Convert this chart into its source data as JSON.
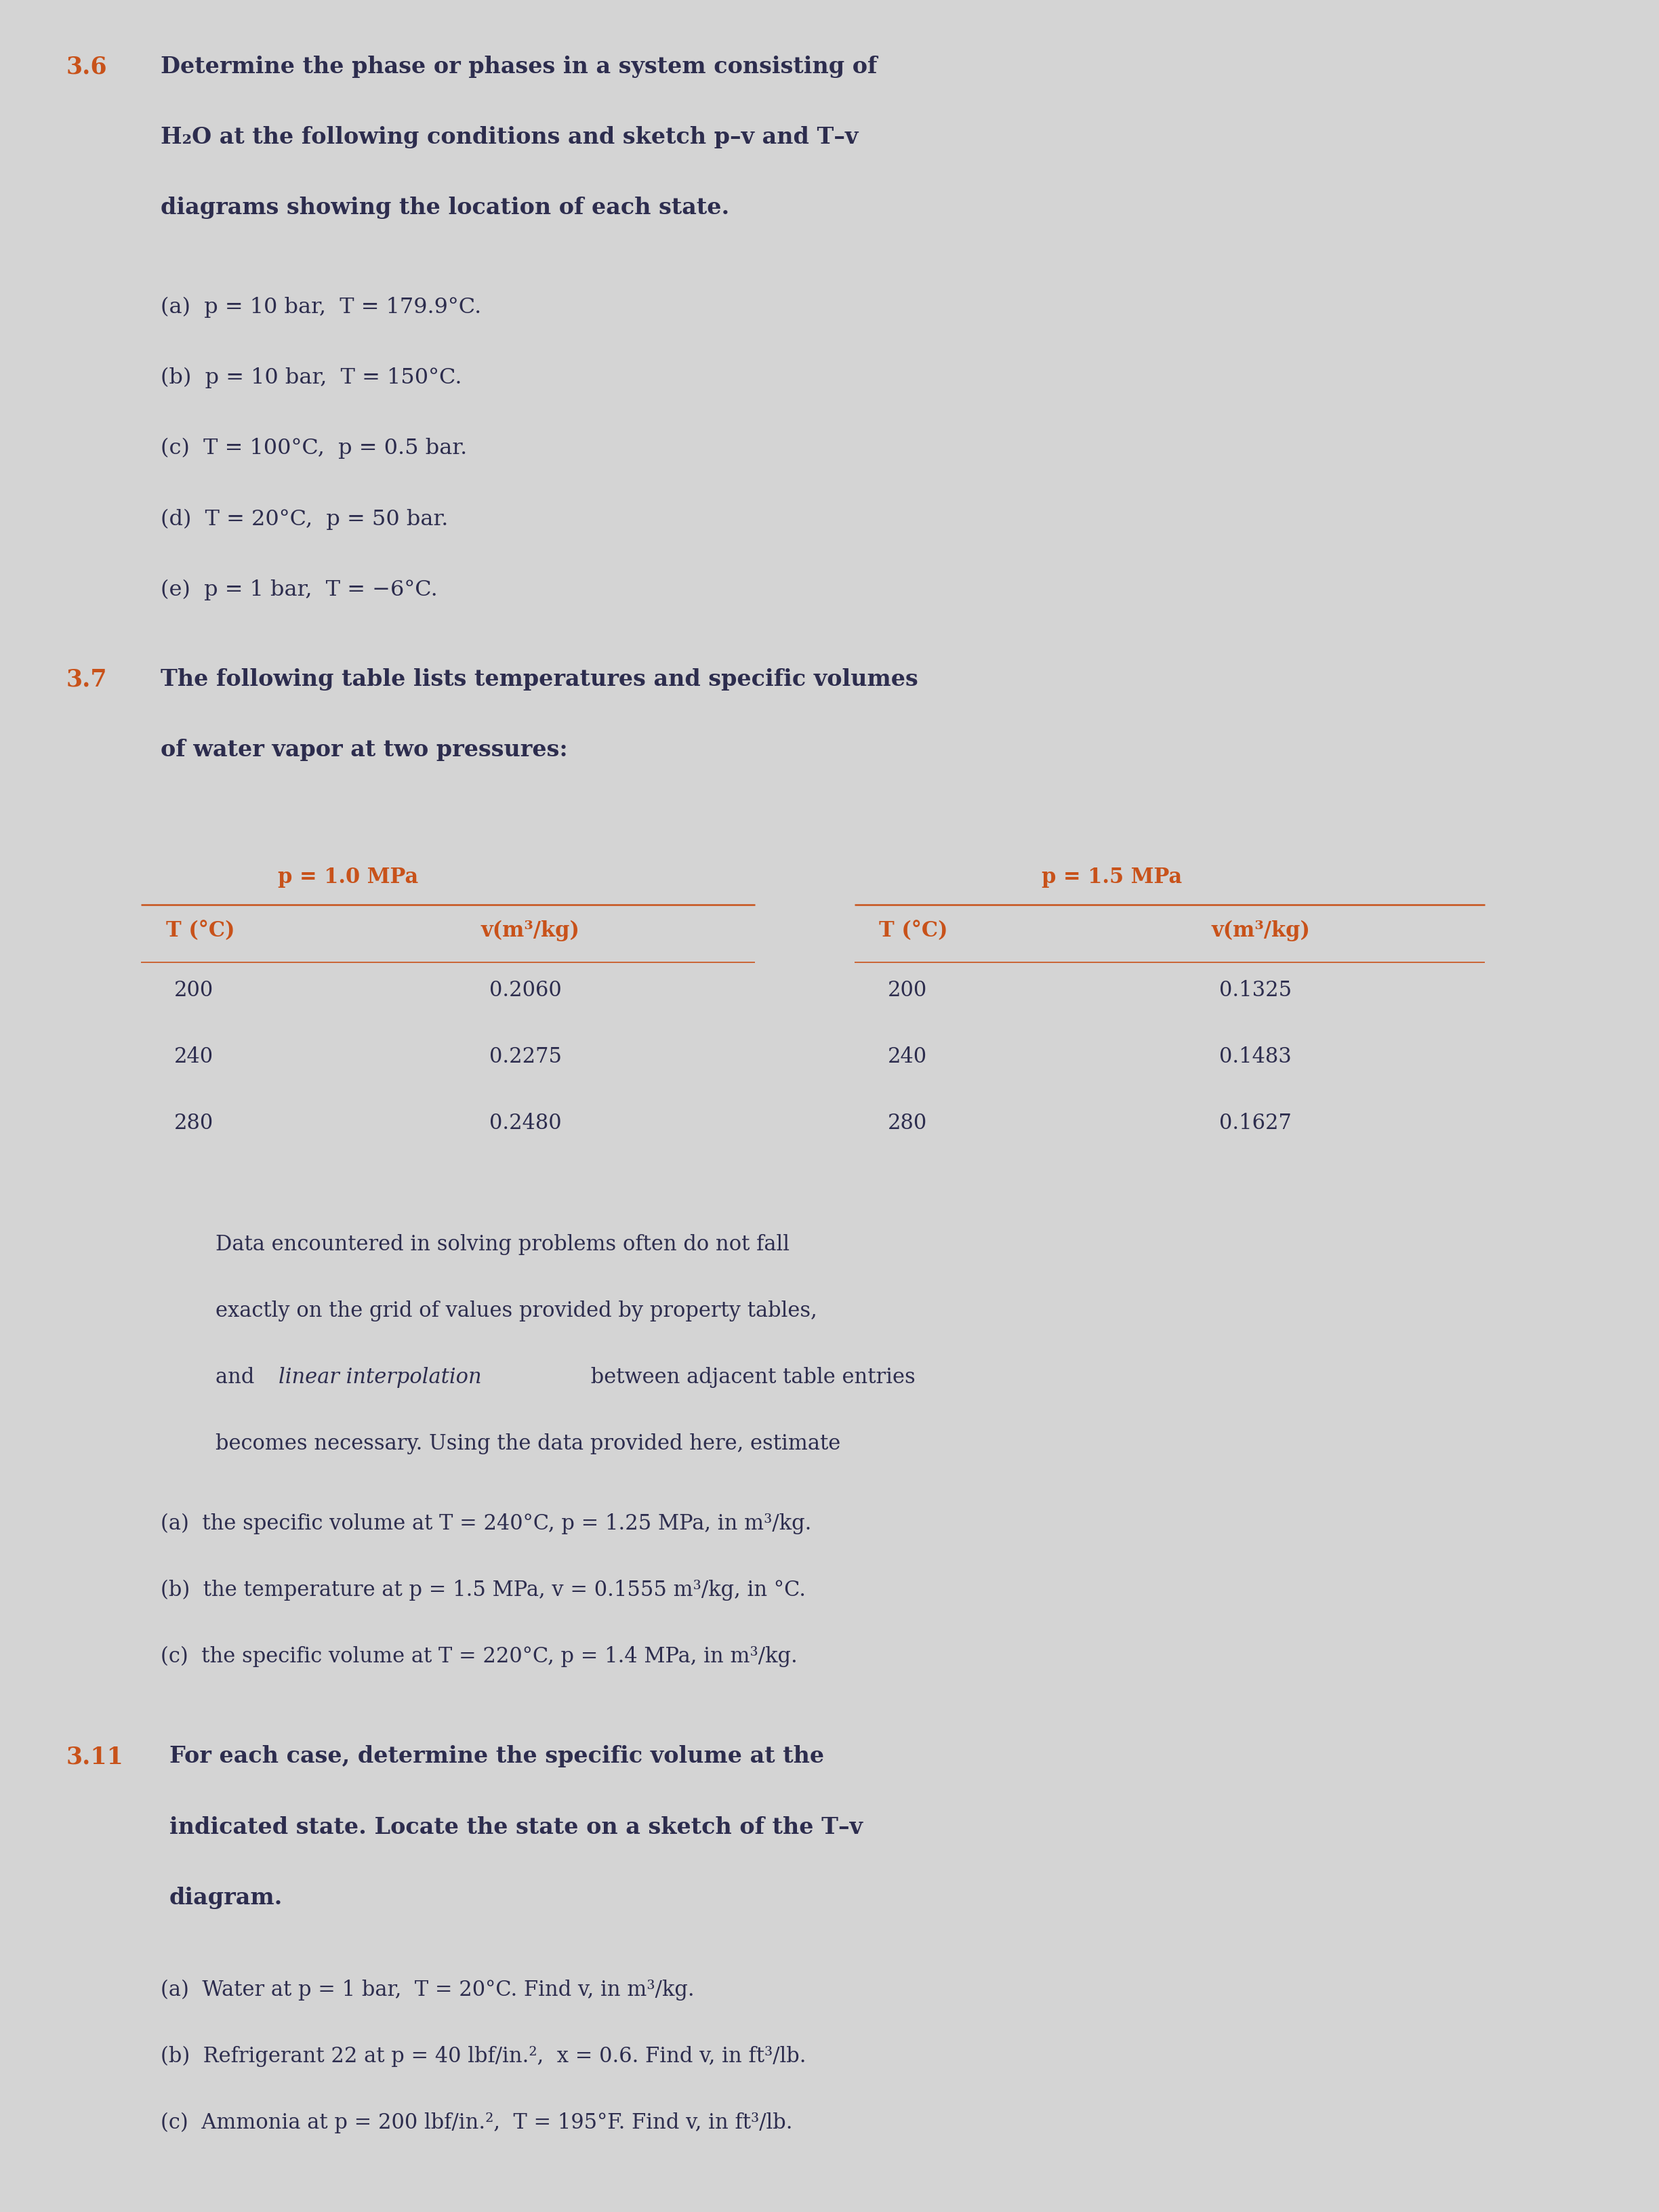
{
  "bg_color": "#d4d4d4",
  "text_color": "#2d2d4e",
  "number_color": "#c8521a",
  "fig_width": 24.48,
  "fig_height": 32.64,
  "problem_36": {
    "number": "3.6",
    "items": [
      "(a)  p = 10 bar,  T = 179.9°C.",
      "(b)  p = 10 bar,  T = 150°C.",
      "(c)  T = 100°C,  p = 0.5 bar.",
      "(d)  T = 20°C,  p = 50 bar.",
      "(e)  p = 1 bar,  T = −6°C."
    ]
  },
  "problem_37": {
    "number": "3.7",
    "col1_header": "p = 1.0 MPa",
    "col2_header": "p = 1.5 MPa",
    "table_data": {
      "p1_T": [
        200,
        240,
        280
      ],
      "p1_v": [
        "0.2060",
        "0.2275",
        "0.2480"
      ],
      "p2_T": [
        200,
        240,
        280
      ],
      "p2_v": [
        "0.1325",
        "0.1483",
        "0.1627"
      ]
    },
    "items": [
      "(a)  the specific volume at T = 240°C, p = 1.25 MPa, in m³/kg.",
      "(b)  the temperature at p = 1.5 MPa, v = 0.1555 m³/kg, in °C.",
      "(c)  the specific volume at T = 220°C, p = 1.4 MPa, in m³/kg."
    ]
  },
  "problem_311": {
    "number": "3.11",
    "items": [
      "(a)  Water at p = 1 bar,  T = 20°C. Find v, in m³/kg.",
      "(b)  Refrigerant 22 at p = 40 lbf/in.²,  x = 0.6. Find v, in ft³/lb.",
      "(c)  Ammonia at p = 200 lbf/in.²,  T = 195°F. Find v, in ft³/lb."
    ]
  }
}
